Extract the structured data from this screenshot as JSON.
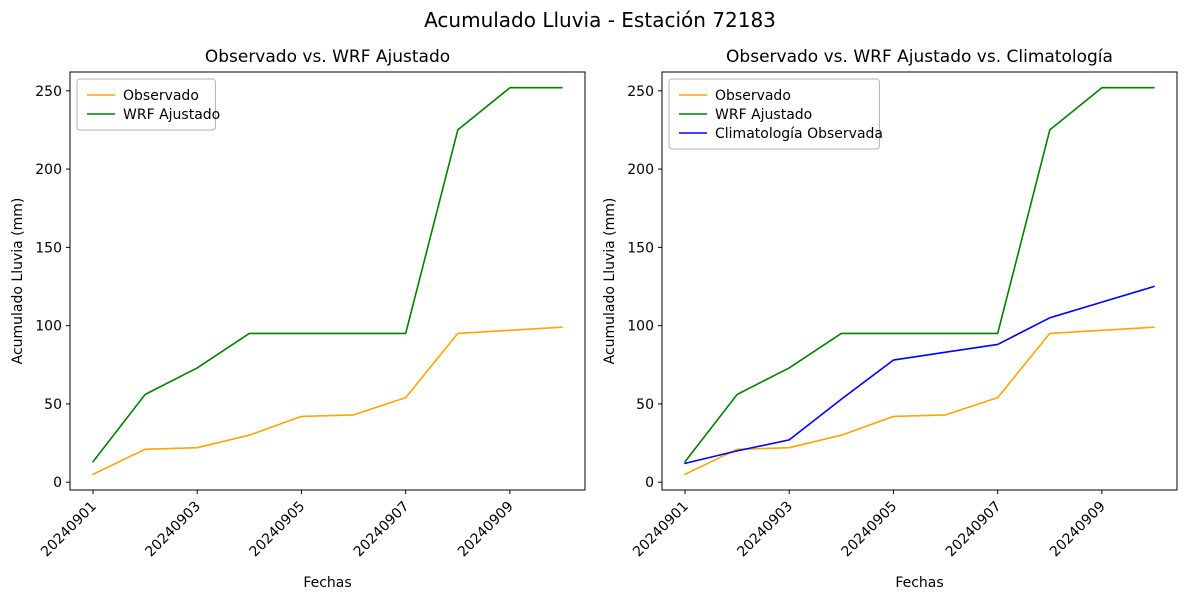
{
  "figure_title": "Acumulado Lluvia - Estación 72183",
  "colors": {
    "observado": "#ffa500",
    "wrf_ajustado": "#008000",
    "climatologia": "#0000ff",
    "spine": "#000000",
    "legend_border": "#b0b0b0",
    "text": "#000000"
  },
  "chart_data": [
    {
      "type": "line",
      "title": "Observado vs. WRF Ajustado",
      "xlabel": "Fechas",
      "ylabel": "Acumulado Lluvia (mm)",
      "x": [
        "20240901",
        "20240902",
        "20240903",
        "20240904",
        "20240905",
        "20240906",
        "20240907",
        "20240908",
        "20240909",
        "20240910"
      ],
      "xticks": [
        "20240901",
        "20240903",
        "20240905",
        "20240907",
        "20240909"
      ],
      "yticks": [
        0,
        50,
        100,
        150,
        200,
        250
      ],
      "ylim": [
        -5,
        262
      ],
      "grid": false,
      "legend_position": "upper left",
      "series": [
        {
          "name": "Observado",
          "color": "#ffa500",
          "values": [
            5,
            21,
            22,
            30,
            42,
            43,
            54,
            95,
            97,
            99
          ]
        },
        {
          "name": "WRF Ajustado",
          "color": "#008000",
          "values": [
            13,
            56,
            73,
            95,
            95,
            95,
            95,
            225,
            252,
            252
          ]
        }
      ]
    },
    {
      "type": "line",
      "title": "Observado vs. WRF Ajustado vs. Climatología",
      "xlabel": "Fechas",
      "ylabel": "Acumulado Lluvia (mm)",
      "x": [
        "20240901",
        "20240902",
        "20240903",
        "20240904",
        "20240905",
        "20240906",
        "20240907",
        "20240908",
        "20240909",
        "20240910"
      ],
      "xticks": [
        "20240901",
        "20240903",
        "20240905",
        "20240907",
        "20240909"
      ],
      "yticks": [
        0,
        50,
        100,
        150,
        200,
        250
      ],
      "ylim": [
        -5,
        262
      ],
      "grid": false,
      "legend_position": "upper left",
      "series": [
        {
          "name": "Observado",
          "color": "#ffa500",
          "values": [
            5,
            21,
            22,
            30,
            42,
            43,
            54,
            95,
            97,
            99
          ]
        },
        {
          "name": "WRF Ajustado",
          "color": "#008000",
          "values": [
            13,
            56,
            73,
            95,
            95,
            95,
            95,
            225,
            252,
            252
          ]
        },
        {
          "name": "Climatología Observada",
          "color": "#0000ff",
          "values": [
            12,
            20,
            27,
            53,
            78,
            83,
            88,
            105,
            115,
            125
          ]
        }
      ]
    }
  ]
}
